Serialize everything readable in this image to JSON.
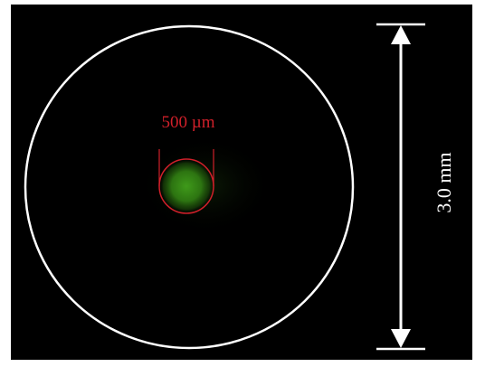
{
  "annotations": {
    "inner_diameter_label": "500 µm",
    "outer_diameter_label": "3.0 mm"
  },
  "colors": {
    "background": "#000000",
    "outer_circle": "#ffffff",
    "inner_circle": "#d0202a",
    "fluorescent_spot": "#3f9a1a",
    "scale_arrow": "#ffffff"
  }
}
